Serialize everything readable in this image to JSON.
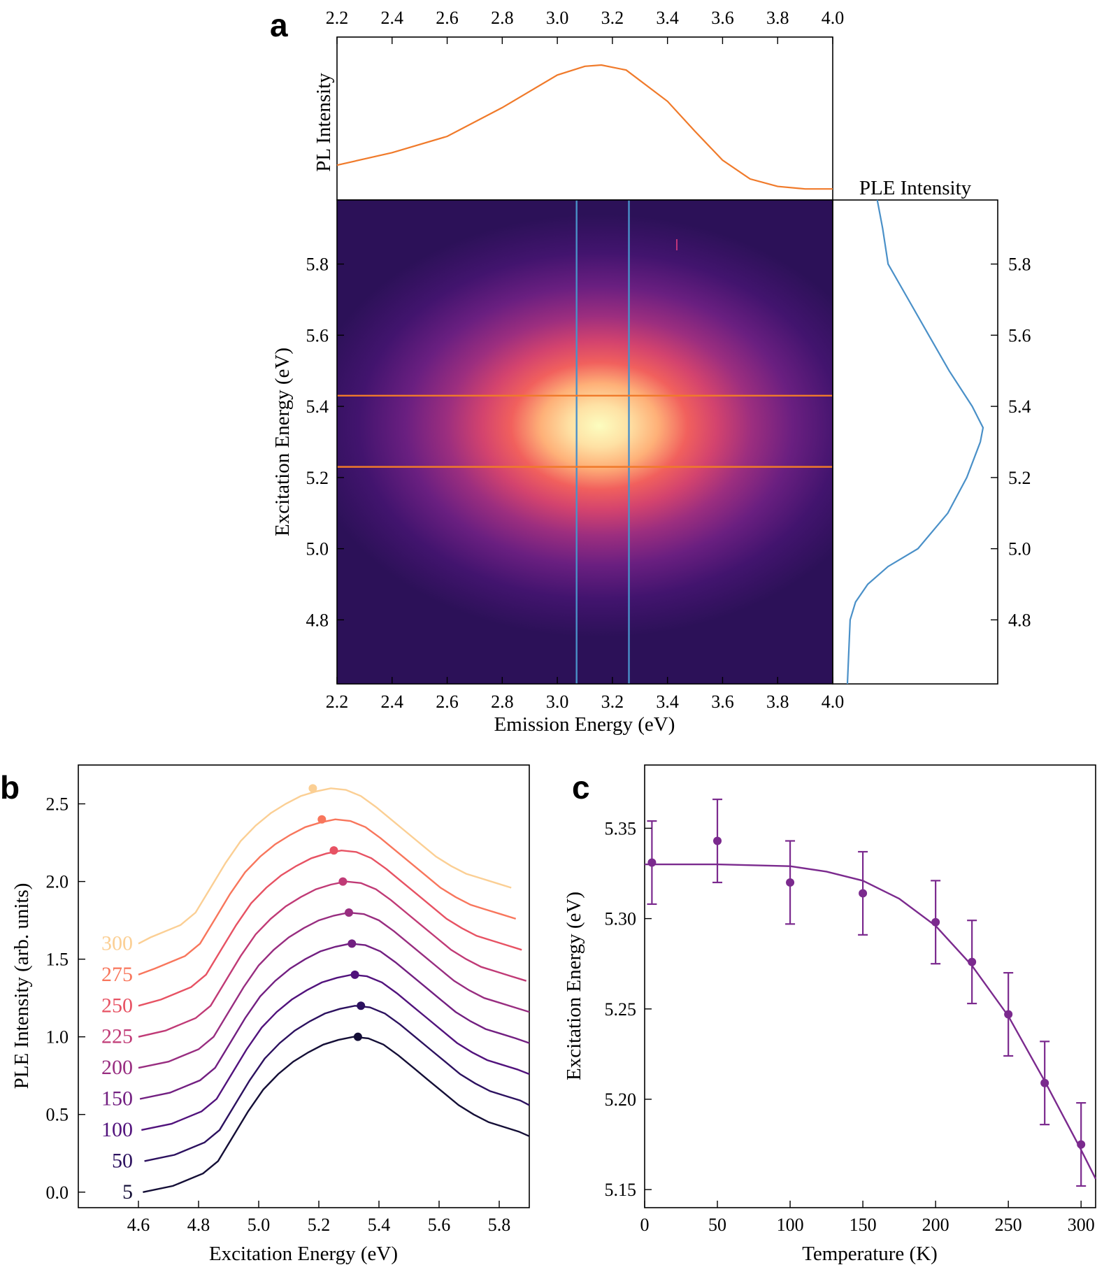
{
  "chart_data": [
    {
      "panel": "a",
      "type": "heatmap",
      "xlabel": "Emission Energy (eV)",
      "ylabel": "Excitation Energy (eV)",
      "xlim": [
        2.2,
        4.0
      ],
      "ylim": [
        4.62,
        5.98
      ],
      "xticks": [
        "2.2",
        "2.4",
        "2.6",
        "2.8",
        "3.0",
        "3.2",
        "3.4",
        "3.6",
        "3.8",
        "4.0"
      ],
      "yticks": [
        "4.8",
        "5.0",
        "5.2",
        "5.4",
        "5.6",
        "5.8"
      ],
      "peak": {
        "emission": 3.16,
        "excitation": 5.34
      },
      "colormap": "magma",
      "cursor_lines": {
        "vertical_emission": [
          3.07,
          3.26
        ],
        "horizontal_excitation": [
          5.23,
          5.43
        ],
        "vertical_color": "#4a90c8",
        "horizontal_color": "#f07a2a"
      },
      "top_profile": {
        "ylabel": "PL Intensity",
        "color": "#f07a2a",
        "x": [
          2.2,
          2.4,
          2.6,
          2.8,
          3.0,
          3.1,
          3.16,
          3.25,
          3.4,
          3.5,
          3.6,
          3.7,
          3.8,
          3.9,
          4.0
        ],
        "y": [
          0.2,
          0.3,
          0.43,
          0.66,
          0.92,
          0.99,
          1.0,
          0.96,
          0.71,
          0.47,
          0.24,
          0.09,
          0.03,
          0.01,
          0.01
        ]
      },
      "right_profile": {
        "xlabel": "PLE Intensity",
        "color": "#4a90c8",
        "excitation": [
          4.62,
          4.8,
          4.85,
          4.9,
          4.95,
          5.0,
          5.1,
          5.2,
          5.3,
          5.34,
          5.4,
          5.5,
          5.6,
          5.7,
          5.8,
          5.9,
          5.98
        ],
        "intensity": [
          0.0,
          0.02,
          0.06,
          0.15,
          0.3,
          0.52,
          0.74,
          0.88,
          0.98,
          1.0,
          0.92,
          0.75,
          0.6,
          0.45,
          0.3,
          0.26,
          0.22
        ]
      }
    },
    {
      "panel": "b",
      "type": "line",
      "xlabel": "Excitation Energy (eV)",
      "ylabel": "PLE Intensity (arb. units)",
      "xlim": [
        4.4,
        5.9
      ],
      "ylim": [
        -0.1,
        2.75
      ],
      "xticks": [
        "4.6",
        "4.8",
        "5.0",
        "5.2",
        "5.4",
        "5.6",
        "5.8"
      ],
      "yticks": [
        "0.0",
        "0.5",
        "1.0",
        "1.5",
        "2.0",
        "2.5"
      ],
      "shape_x": [
        4.6,
        4.7,
        4.8,
        4.85,
        4.9,
        4.95,
        5.0,
        5.05,
        5.1,
        5.15,
        5.2,
        5.25,
        5.3,
        5.35,
        5.4,
        5.45,
        5.5,
        5.55,
        5.6,
        5.65,
        5.7,
        5.75,
        5.8,
        5.85,
        5.9
      ],
      "shape_y": [
        0.0,
        0.04,
        0.12,
        0.2,
        0.36,
        0.52,
        0.66,
        0.76,
        0.84,
        0.9,
        0.95,
        0.98,
        1.0,
        0.99,
        0.95,
        0.88,
        0.8,
        0.72,
        0.64,
        0.56,
        0.5,
        0.45,
        0.42,
        0.39,
        0.36
      ],
      "series": [
        {
          "name": "5",
          "offset": 0.0,
          "peak_x": 5.33,
          "color": "#140e36"
        },
        {
          "name": "50",
          "offset": 0.2,
          "peak_x": 5.34,
          "color": "#2c115f"
        },
        {
          "name": "100",
          "offset": 0.4,
          "peak_x": 5.32,
          "color": "#51127c"
        },
        {
          "name": "150",
          "offset": 0.6,
          "peak_x": 5.31,
          "color": "#721f81"
        },
        {
          "name": "200",
          "offset": 0.8,
          "peak_x": 5.3,
          "color": "#982d80"
        },
        {
          "name": "225",
          "offset": 1.0,
          "peak_x": 5.28,
          "color": "#c03a76"
        },
        {
          "name": "250",
          "offset": 1.2,
          "peak_x": 5.25,
          "color": "#e75263"
        },
        {
          "name": "275",
          "offset": 1.4,
          "peak_x": 5.21,
          "color": "#f8765c"
        },
        {
          "name": "300",
          "offset": 1.6,
          "peak_x": 5.18,
          "color": "#fbcf94"
        }
      ]
    },
    {
      "panel": "c",
      "type": "scatter",
      "xlabel": "Temperature (K)",
      "ylabel": "Excitation Energy (eV)",
      "xlim": [
        0,
        310
      ],
      "ylim": [
        5.14,
        5.385
      ],
      "xticks": [
        "0",
        "50",
        "100",
        "150",
        "200",
        "250",
        "300"
      ],
      "yticks": [
        "5.15",
        "5.20",
        "5.25",
        "5.30",
        "5.35"
      ],
      "color": "#7b2a8e",
      "points": [
        {
          "x": 5,
          "y": 5.331,
          "err": 0.023
        },
        {
          "x": 50,
          "y": 5.343,
          "err": 0.023
        },
        {
          "x": 100,
          "y": 5.32,
          "err": 0.023
        },
        {
          "x": 150,
          "y": 5.314,
          "err": 0.023
        },
        {
          "x": 200,
          "y": 5.298,
          "err": 0.023
        },
        {
          "x": 225,
          "y": 5.276,
          "err": 0.023
        },
        {
          "x": 250,
          "y": 5.247,
          "err": 0.023
        },
        {
          "x": 275,
          "y": 5.209,
          "err": 0.023
        },
        {
          "x": 300,
          "y": 5.175,
          "err": 0.023
        }
      ],
      "fit": {
        "x": [
          0,
          50,
          100,
          125,
          150,
          175,
          200,
          225,
          250,
          275,
          300,
          310
        ],
        "y": [
          5.33,
          5.33,
          5.329,
          5.326,
          5.321,
          5.311,
          5.296,
          5.274,
          5.246,
          5.21,
          5.172,
          5.156
        ]
      }
    }
  ]
}
